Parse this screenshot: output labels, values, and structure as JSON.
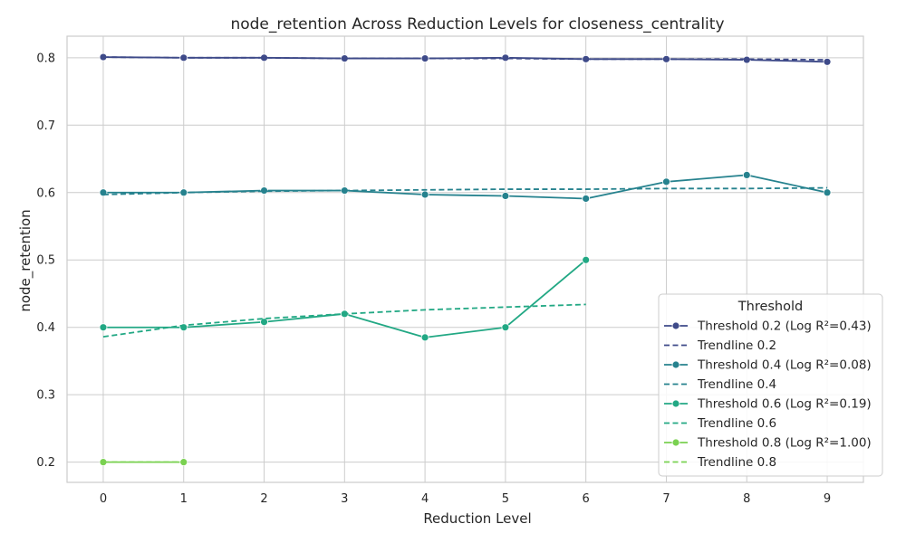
{
  "chart_data": {
    "type": "line",
    "title": "node_retention Across Reduction Levels for closeness_centrality",
    "xlabel": "Reduction Level",
    "ylabel": "node_retention",
    "xlim": [
      -0.45,
      9.45
    ],
    "ylim": [
      0.17,
      0.832
    ],
    "xticks": [
      0,
      1,
      2,
      3,
      4,
      5,
      6,
      7,
      8,
      9
    ],
    "xtick_labels": [
      "0",
      "1",
      "2",
      "3",
      "4",
      "5",
      "6",
      "7",
      "8",
      "9"
    ],
    "yticks": [
      0.2,
      0.3,
      0.4,
      0.5,
      0.6,
      0.7,
      0.8
    ],
    "ytick_labels": [
      "0.2",
      "0.3",
      "0.4",
      "0.5",
      "0.6",
      "0.7",
      "0.8"
    ],
    "grid": true,
    "legend_title": "Threshold",
    "legend_position": "lower-right",
    "series": [
      {
        "name": "Threshold 0.2 (Log R²=0.43)",
        "kind": "data",
        "color": "#3e4a89",
        "x": [
          0,
          1,
          2,
          3,
          4,
          5,
          6,
          7,
          8,
          9
        ],
        "y": [
          0.801,
          0.8,
          0.8,
          0.799,
          0.799,
          0.8,
          0.798,
          0.798,
          0.797,
          0.794
        ]
      },
      {
        "name": "Trendline 0.2",
        "kind": "trend",
        "color": "#3e4a89",
        "x": [
          0,
          1,
          2,
          3,
          4,
          5,
          6,
          7,
          8,
          9
        ],
        "y": [
          0.801,
          0.8,
          0.8,
          0.799,
          0.799,
          0.799,
          0.798,
          0.798,
          0.798,
          0.797
        ]
      },
      {
        "name": "Threshold 0.4 (Log R²=0.08)",
        "kind": "data",
        "color": "#26828e",
        "x": [
          0,
          1,
          2,
          3,
          4,
          5,
          6,
          7,
          8,
          9
        ],
        "y": [
          0.6,
          0.6,
          0.603,
          0.603,
          0.597,
          0.595,
          0.591,
          0.616,
          0.626,
          0.6
        ]
      },
      {
        "name": "Trendline 0.4",
        "kind": "trend",
        "color": "#26828e",
        "x": [
          0,
          1,
          2,
          3,
          4,
          5,
          6,
          7,
          8,
          9
        ],
        "y": [
          0.597,
          0.6,
          0.602,
          0.603,
          0.604,
          0.605,
          0.605,
          0.606,
          0.606,
          0.607
        ]
      },
      {
        "name": "Threshold 0.6 (Log R²=0.19)",
        "kind": "data",
        "color": "#22a884",
        "x": [
          0,
          1,
          2,
          3,
          4,
          5,
          6
        ],
        "y": [
          0.4,
          0.4,
          0.408,
          0.42,
          0.385,
          0.4,
          0.5
        ]
      },
      {
        "name": "Trendline 0.6",
        "kind": "trend",
        "color": "#22a884",
        "x": [
          0,
          1,
          2,
          3,
          4,
          5,
          6
        ],
        "y": [
          0.386,
          0.403,
          0.413,
          0.42,
          0.426,
          0.43,
          0.434
        ]
      },
      {
        "name": "Threshold 0.8 (Log R²=1.00)",
        "kind": "data",
        "color": "#7ad151",
        "x": [
          0,
          1
        ],
        "y": [
          0.2,
          0.2
        ]
      },
      {
        "name": "Trendline 0.8",
        "kind": "trend",
        "color": "#7ad151",
        "x": [
          0,
          1
        ],
        "y": [
          0.2,
          0.2
        ]
      }
    ]
  }
}
